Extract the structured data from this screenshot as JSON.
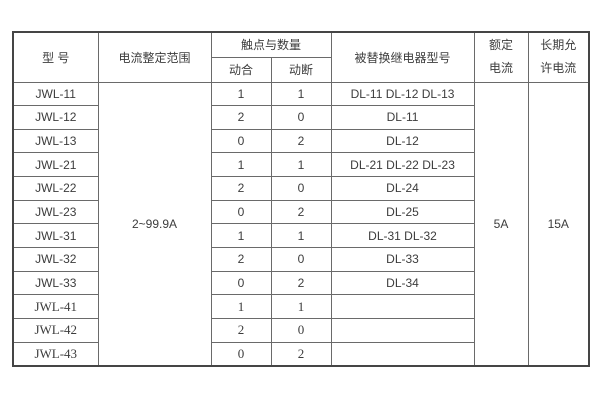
{
  "table": {
    "headers": {
      "model": "型 号",
      "current_range": "电流整定范围",
      "contacts_group": "触点与数量",
      "contact_no": "动合",
      "contact_nc": "动断",
      "replaced_models": "被替换继电器型号",
      "rated_current_line1": "额定",
      "rated_current_line2": "电流",
      "long_term_line1": "长期允",
      "long_term_line2": "许电流"
    },
    "merged": {
      "current_range_value": "2~99.9A",
      "rated_current_value": "5A",
      "long_term_value": "15A"
    },
    "rows": [
      {
        "model": "JWL-11",
        "no": "1",
        "nc": "1",
        "replaced": "DL-11 DL-12 DL-13",
        "serif": false
      },
      {
        "model": "JWL-12",
        "no": "2",
        "nc": "0",
        "replaced": "DL-11",
        "serif": false
      },
      {
        "model": "JWL-13",
        "no": "0",
        "nc": "2",
        "replaced": "DL-12",
        "serif": false
      },
      {
        "model": "JWL-21",
        "no": "1",
        "nc": "1",
        "replaced": "DL-21 DL-22 DL-23",
        "serif": false
      },
      {
        "model": "JWL-22",
        "no": "2",
        "nc": "0",
        "replaced": "DL-24",
        "serif": false
      },
      {
        "model": "JWL-23",
        "no": "0",
        "nc": "2",
        "replaced": "DL-25",
        "serif": false
      },
      {
        "model": "JWL-31",
        "no": "1",
        "nc": "1",
        "replaced": "DL-31  DL-32",
        "serif": false
      },
      {
        "model": "JWL-32",
        "no": "2",
        "nc": "0",
        "replaced": "DL-33",
        "serif": false
      },
      {
        "model": "JWL-33",
        "no": "0",
        "nc": "2",
        "replaced": "DL-34",
        "serif": false
      },
      {
        "model": "JWL-41",
        "no": "1",
        "nc": "1",
        "replaced": "",
        "serif": true
      },
      {
        "model": "JWL-42",
        "no": "2",
        "nc": "0",
        "replaced": "",
        "serif": true
      },
      {
        "model": "JWL-43",
        "no": "0",
        "nc": "2",
        "replaced": "",
        "serif": true
      }
    ],
    "colors": {
      "outer_border": "#454545",
      "inner_border": "#6a6a6a",
      "text": "#3c3c3c",
      "background": "#ffffff"
    }
  }
}
